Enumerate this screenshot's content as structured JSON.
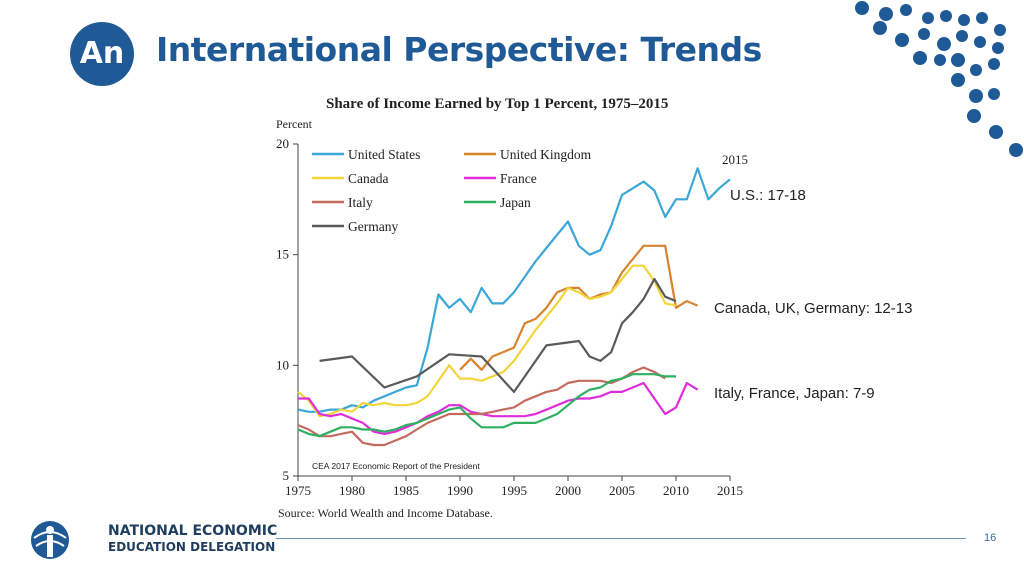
{
  "slide": {
    "badge": "An",
    "title": "International Perspective: Trends",
    "page_number": "16",
    "accent_color": "#1f5a96"
  },
  "callouts": {
    "us": "U.S.: 17-18",
    "canada_uk_germany": "Canada, UK, Germany: 12-13",
    "italy_france_japan": "Italy, France, Japan: 7-9"
  },
  "logo": {
    "line1": "NATIONAL ECONOMIC",
    "line2": "EDUCATION DELEGATION",
    "icon": "person-globe-icon"
  },
  "chart_data": {
    "type": "line",
    "title": "Share of Income Earned by Top 1 Percent, 1975–2015",
    "ylabel": "Percent",
    "xlabel": "",
    "xlim": [
      1975,
      2015
    ],
    "ylim": [
      5,
      20
    ],
    "x_ticks": [
      1975,
      1980,
      1985,
      1990,
      1995,
      2000,
      2005,
      2010,
      2015
    ],
    "y_ticks": [
      5,
      10,
      15,
      20
    ],
    "grid": false,
    "legend_position": "top-left",
    "end_label": "2015",
    "inner_note": "CEA 2017 Economic Report of the President",
    "source": "Source: World Wealth and Income Database.",
    "series": [
      {
        "name": "United States",
        "color": "#3aa7d8",
        "points": [
          [
            1975,
            8.0
          ],
          [
            1976,
            7.9
          ],
          [
            1977,
            7.9
          ],
          [
            1978,
            8.0
          ],
          [
            1979,
            8.0
          ],
          [
            1980,
            8.2
          ],
          [
            1981,
            8.1
          ],
          [
            1982,
            8.4
          ],
          [
            1983,
            8.6
          ],
          [
            1984,
            8.8
          ],
          [
            1985,
            9.0
          ],
          [
            1986,
            9.1
          ],
          [
            1987,
            10.8
          ],
          [
            1988,
            13.2
          ],
          [
            1989,
            12.6
          ],
          [
            1990,
            13.0
          ],
          [
            1991,
            12.4
          ],
          [
            1992,
            13.5
          ],
          [
            1993,
            12.8
          ],
          [
            1994,
            12.8
          ],
          [
            1995,
            13.3
          ],
          [
            1996,
            14.0
          ],
          [
            1997,
            14.7
          ],
          [
            1998,
            15.3
          ],
          [
            1999,
            15.9
          ],
          [
            2000,
            16.5
          ],
          [
            2001,
            15.4
          ],
          [
            2002,
            15.0
          ],
          [
            2003,
            15.2
          ],
          [
            2004,
            16.3
          ],
          [
            2005,
            17.7
          ],
          [
            2006,
            18.0
          ],
          [
            2007,
            18.3
          ],
          [
            2008,
            17.9
          ],
          [
            2009,
            16.7
          ],
          [
            2010,
            17.5
          ],
          [
            2011,
            17.5
          ],
          [
            2012,
            18.9
          ],
          [
            2013,
            17.5
          ],
          [
            2014,
            18.0
          ],
          [
            2015,
            18.4
          ]
        ]
      },
      {
        "name": "United Kingdom",
        "color": "#d9832e",
        "points": [
          [
            1990,
            9.8
          ],
          [
            1991,
            10.3
          ],
          [
            1992,
            9.8
          ],
          [
            1993,
            10.4
          ],
          [
            1994,
            10.6
          ],
          [
            1995,
            10.8
          ],
          [
            1996,
            11.9
          ],
          [
            1997,
            12.1
          ],
          [
            1998,
            12.6
          ],
          [
            1999,
            13.3
          ],
          [
            2000,
            13.5
          ],
          [
            2001,
            13.5
          ],
          [
            2002,
            13.0
          ],
          [
            2003,
            13.2
          ],
          [
            2004,
            13.3
          ],
          [
            2005,
            14.2
          ],
          [
            2006,
            14.8
          ],
          [
            2007,
            15.4
          ],
          [
            2008,
            15.4
          ],
          [
            2009,
            15.4
          ],
          [
            2010,
            12.6
          ],
          [
            2011,
            12.9
          ],
          [
            2012,
            12.7
          ]
        ]
      },
      {
        "name": "Canada",
        "color": "#f2d43b",
        "points": [
          [
            1975,
            8.8
          ],
          [
            1976,
            8.4
          ],
          [
            1977,
            7.7
          ],
          [
            1978,
            7.8
          ],
          [
            1979,
            8.0
          ],
          [
            1980,
            7.9
          ],
          [
            1981,
            8.3
          ],
          [
            1982,
            8.2
          ],
          [
            1983,
            8.3
          ],
          [
            1984,
            8.2
          ],
          [
            1985,
            8.2
          ],
          [
            1986,
            8.3
          ],
          [
            1987,
            8.6
          ],
          [
            1988,
            9.3
          ],
          [
            1989,
            10.0
          ],
          [
            1990,
            9.4
          ],
          [
            1991,
            9.4
          ],
          [
            1992,
            9.3
          ],
          [
            1993,
            9.5
          ],
          [
            1994,
            9.7
          ],
          [
            1995,
            10.2
          ],
          [
            1996,
            10.9
          ],
          [
            1997,
            11.6
          ],
          [
            1998,
            12.2
          ],
          [
            1999,
            12.8
          ],
          [
            2000,
            13.5
          ],
          [
            2001,
            13.3
          ],
          [
            2002,
            13.0
          ],
          [
            2003,
            13.1
          ],
          [
            2004,
            13.3
          ],
          [
            2005,
            13.9
          ],
          [
            2006,
            14.5
          ],
          [
            2007,
            14.5
          ],
          [
            2008,
            13.8
          ],
          [
            2009,
            12.8
          ],
          [
            2010,
            12.7
          ]
        ]
      },
      {
        "name": "France",
        "color": "#e02ddb",
        "points": [
          [
            1975,
            8.5
          ],
          [
            1976,
            8.5
          ],
          [
            1977,
            7.8
          ],
          [
            1978,
            7.7
          ],
          [
            1979,
            7.8
          ],
          [
            1980,
            7.6
          ],
          [
            1981,
            7.4
          ],
          [
            1982,
            7.0
          ],
          [
            1983,
            6.9
          ],
          [
            1984,
            7.0
          ],
          [
            1985,
            7.2
          ],
          [
            1986,
            7.4
          ],
          [
            1987,
            7.7
          ],
          [
            1988,
            7.9
          ],
          [
            1989,
            8.2
          ],
          [
            1990,
            8.2
          ],
          [
            1991,
            7.9
          ],
          [
            1992,
            7.8
          ],
          [
            1993,
            7.7
          ],
          [
            1994,
            7.7
          ],
          [
            1995,
            7.7
          ],
          [
            1996,
            7.7
          ],
          [
            1997,
            7.8
          ],
          [
            1998,
            8.0
          ],
          [
            1999,
            8.2
          ],
          [
            2000,
            8.4
          ],
          [
            2001,
            8.5
          ],
          [
            2002,
            8.5
          ],
          [
            2003,
            8.6
          ],
          [
            2004,
            8.8
          ],
          [
            2005,
            8.8
          ],
          [
            2006,
            9.0
          ],
          [
            2007,
            9.2
          ],
          [
            2008,
            8.5
          ],
          [
            2009,
            7.8
          ],
          [
            2010,
            8.1
          ],
          [
            2011,
            9.2
          ],
          [
            2012,
            8.9
          ]
        ]
      },
      {
        "name": "Italy",
        "color": "#c46a5e",
        "points": [
          [
            1975,
            7.3
          ],
          [
            1976,
            7.1
          ],
          [
            1977,
            6.8
          ],
          [
            1978,
            6.8
          ],
          [
            1979,
            6.9
          ],
          [
            1980,
            7.0
          ],
          [
            1981,
            6.5
          ],
          [
            1982,
            6.4
          ],
          [
            1983,
            6.4
          ],
          [
            1984,
            6.6
          ],
          [
            1985,
            6.8
          ],
          [
            1986,
            7.1
          ],
          [
            1987,
            7.4
          ],
          [
            1988,
            7.6
          ],
          [
            1989,
            7.8
          ],
          [
            1990,
            7.8
          ],
          [
            1991,
            7.8
          ],
          [
            1992,
            7.8
          ],
          [
            1993,
            7.9
          ],
          [
            1994,
            8.0
          ],
          [
            1995,
            8.1
          ],
          [
            1996,
            8.4
          ],
          [
            1997,
            8.6
          ],
          [
            1998,
            8.8
          ],
          [
            1999,
            8.9
          ],
          [
            2000,
            9.2
          ],
          [
            2001,
            9.3
          ],
          [
            2002,
            9.3
          ],
          [
            2003,
            9.3
          ],
          [
            2004,
            9.2
          ],
          [
            2005,
            9.4
          ],
          [
            2006,
            9.7
          ],
          [
            2007,
            9.9
          ],
          [
            2008,
            9.7
          ],
          [
            2009,
            9.4
          ]
        ]
      },
      {
        "name": "Japan",
        "color": "#2fb060",
        "points": [
          [
            1975,
            7.1
          ],
          [
            1976,
            6.9
          ],
          [
            1977,
            6.8
          ],
          [
            1978,
            7.0
          ],
          [
            1979,
            7.2
          ],
          [
            1980,
            7.2
          ],
          [
            1981,
            7.1
          ],
          [
            1982,
            7.1
          ],
          [
            1983,
            7.0
          ],
          [
            1984,
            7.1
          ],
          [
            1985,
            7.3
          ],
          [
            1986,
            7.4
          ],
          [
            1987,
            7.6
          ],
          [
            1988,
            7.8
          ],
          [
            1989,
            8.0
          ],
          [
            1990,
            8.1
          ],
          [
            1991,
            7.6
          ],
          [
            1992,
            7.2
          ],
          [
            1993,
            7.2
          ],
          [
            1994,
            7.2
          ],
          [
            1995,
            7.4
          ],
          [
            1996,
            7.4
          ],
          [
            1997,
            7.4
          ],
          [
            1998,
            7.6
          ],
          [
            1999,
            7.8
          ],
          [
            2000,
            8.2
          ],
          [
            2001,
            8.6
          ],
          [
            2002,
            8.9
          ],
          [
            2003,
            9.0
          ],
          [
            2004,
            9.3
          ],
          [
            2005,
            9.4
          ],
          [
            2006,
            9.6
          ],
          [
            2007,
            9.6
          ],
          [
            2008,
            9.6
          ],
          [
            2009,
            9.5
          ],
          [
            2010,
            9.5
          ]
        ]
      },
      {
        "name": "Germany",
        "color": "#5a5a5a",
        "points": [
          [
            1977,
            10.2
          ],
          [
            1980,
            10.4
          ],
          [
            1983,
            9.0
          ],
          [
            1986,
            9.5
          ],
          [
            1989,
            10.5
          ],
          [
            1992,
            10.4
          ],
          [
            1995,
            8.8
          ],
          [
            1998,
            10.9
          ],
          [
            2001,
            11.1
          ],
          [
            2002,
            10.4
          ],
          [
            2003,
            10.2
          ],
          [
            2004,
            10.6
          ],
          [
            2005,
            11.9
          ],
          [
            2006,
            12.4
          ],
          [
            2007,
            13.0
          ],
          [
            2008,
            13.9
          ],
          [
            2009,
            13.1
          ],
          [
            2010,
            12.9
          ]
        ]
      }
    ]
  }
}
